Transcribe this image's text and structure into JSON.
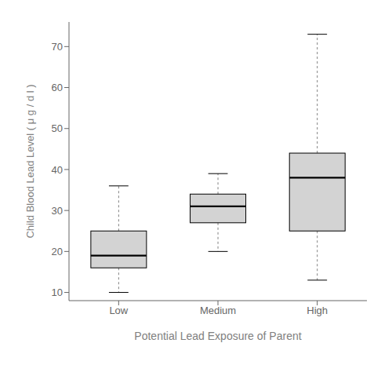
{
  "chart_data": {
    "type": "box",
    "categories": [
      "Low",
      "Medium",
      "High"
    ],
    "boxes": [
      {
        "whisker_low": 10,
        "q1": 16,
        "median": 19,
        "q3": 25,
        "whisker_high": 36
      },
      {
        "whisker_low": 20,
        "q1": 27,
        "median": 31,
        "q3": 34,
        "whisker_high": 39
      },
      {
        "whisker_low": 13,
        "q1": 25,
        "median": 38,
        "q3": 44,
        "whisker_high": 73
      }
    ],
    "xlabel": "Potential Lead Exposure of Parent",
    "ylabel": "Child Blood Lead Level ( μ g / d l )",
    "ylim": [
      8,
      76
    ],
    "yticks": [
      10,
      20,
      30,
      40,
      50,
      60,
      70
    ],
    "grid": false,
    "color": "#d3d3d3"
  }
}
